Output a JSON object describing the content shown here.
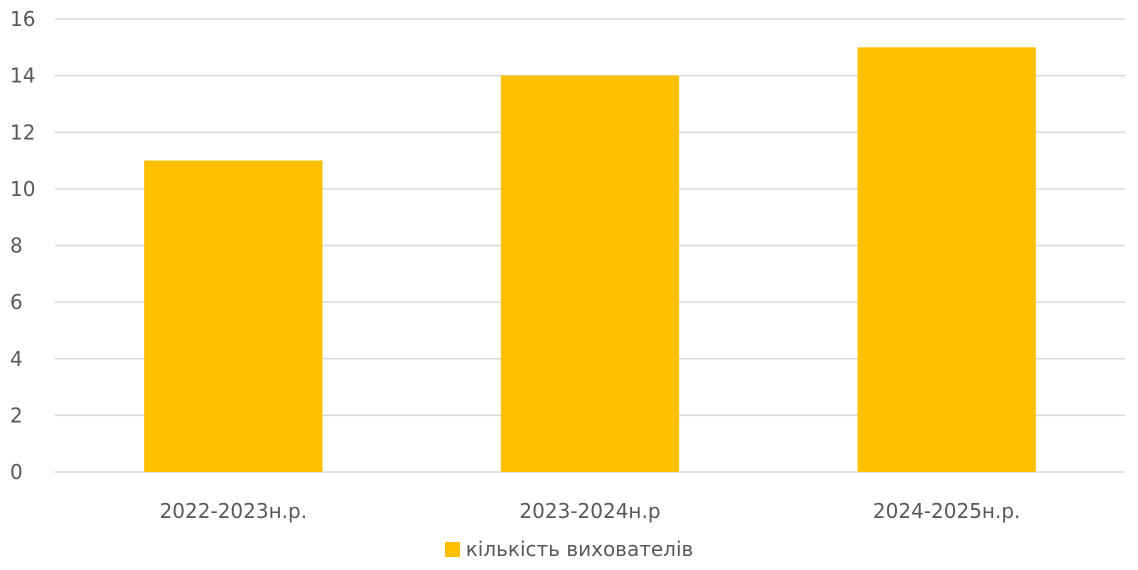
{
  "chart_data": {
    "type": "bar",
    "categories": [
      "2022-2023н.р.",
      "2023-2024н.р",
      "2024-2025н.р."
    ],
    "series": [
      {
        "name": "кількість вихователів",
        "values": [
          11,
          14,
          15
        ],
        "color": "#FFC000"
      }
    ],
    "ylim": [
      0,
      16
    ],
    "yticks": [
      0,
      2,
      4,
      6,
      8,
      10,
      12,
      14,
      16
    ],
    "grid": true,
    "legend_position": "bottom"
  }
}
